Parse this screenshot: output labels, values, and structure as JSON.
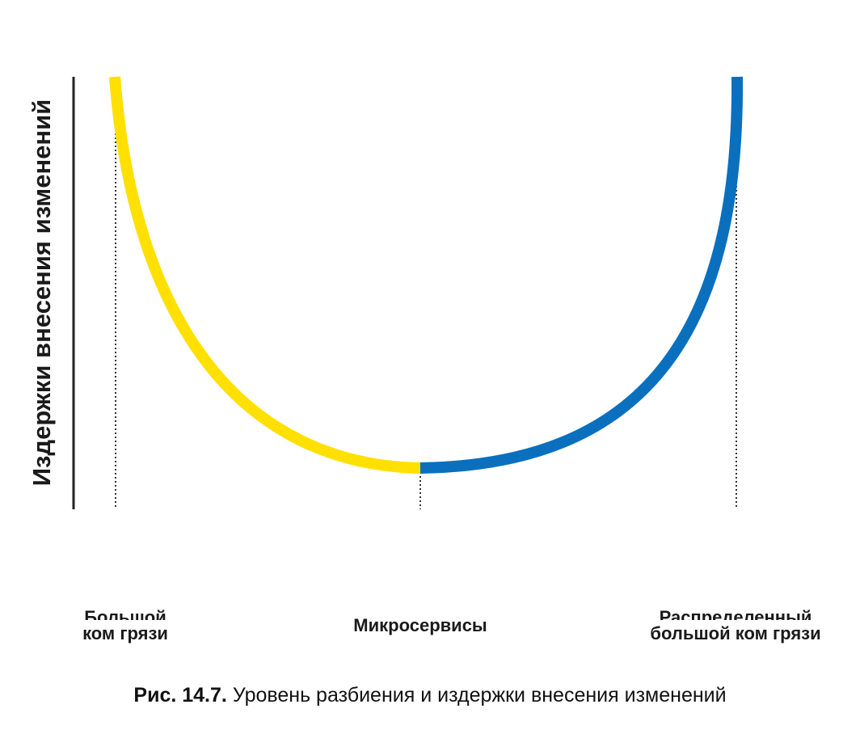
{
  "diagram": {
    "y_axis_label": "Издержки внесения изменений",
    "x_labels": {
      "left": [
        "Большой",
        "ком грязи"
      ],
      "middle": "Микросервисы",
      "right": [
        "Распределенный",
        "большой ком грязи"
      ]
    },
    "colors": {
      "left_curve": "#FFE000",
      "right_curve": "#0A70BE",
      "axis": "#222222",
      "guide_lines": "#333333"
    }
  },
  "caption": {
    "figure_number": "Рис. 14.7.",
    "text": "Уровень разбиения и издержки внесения изменений"
  }
}
